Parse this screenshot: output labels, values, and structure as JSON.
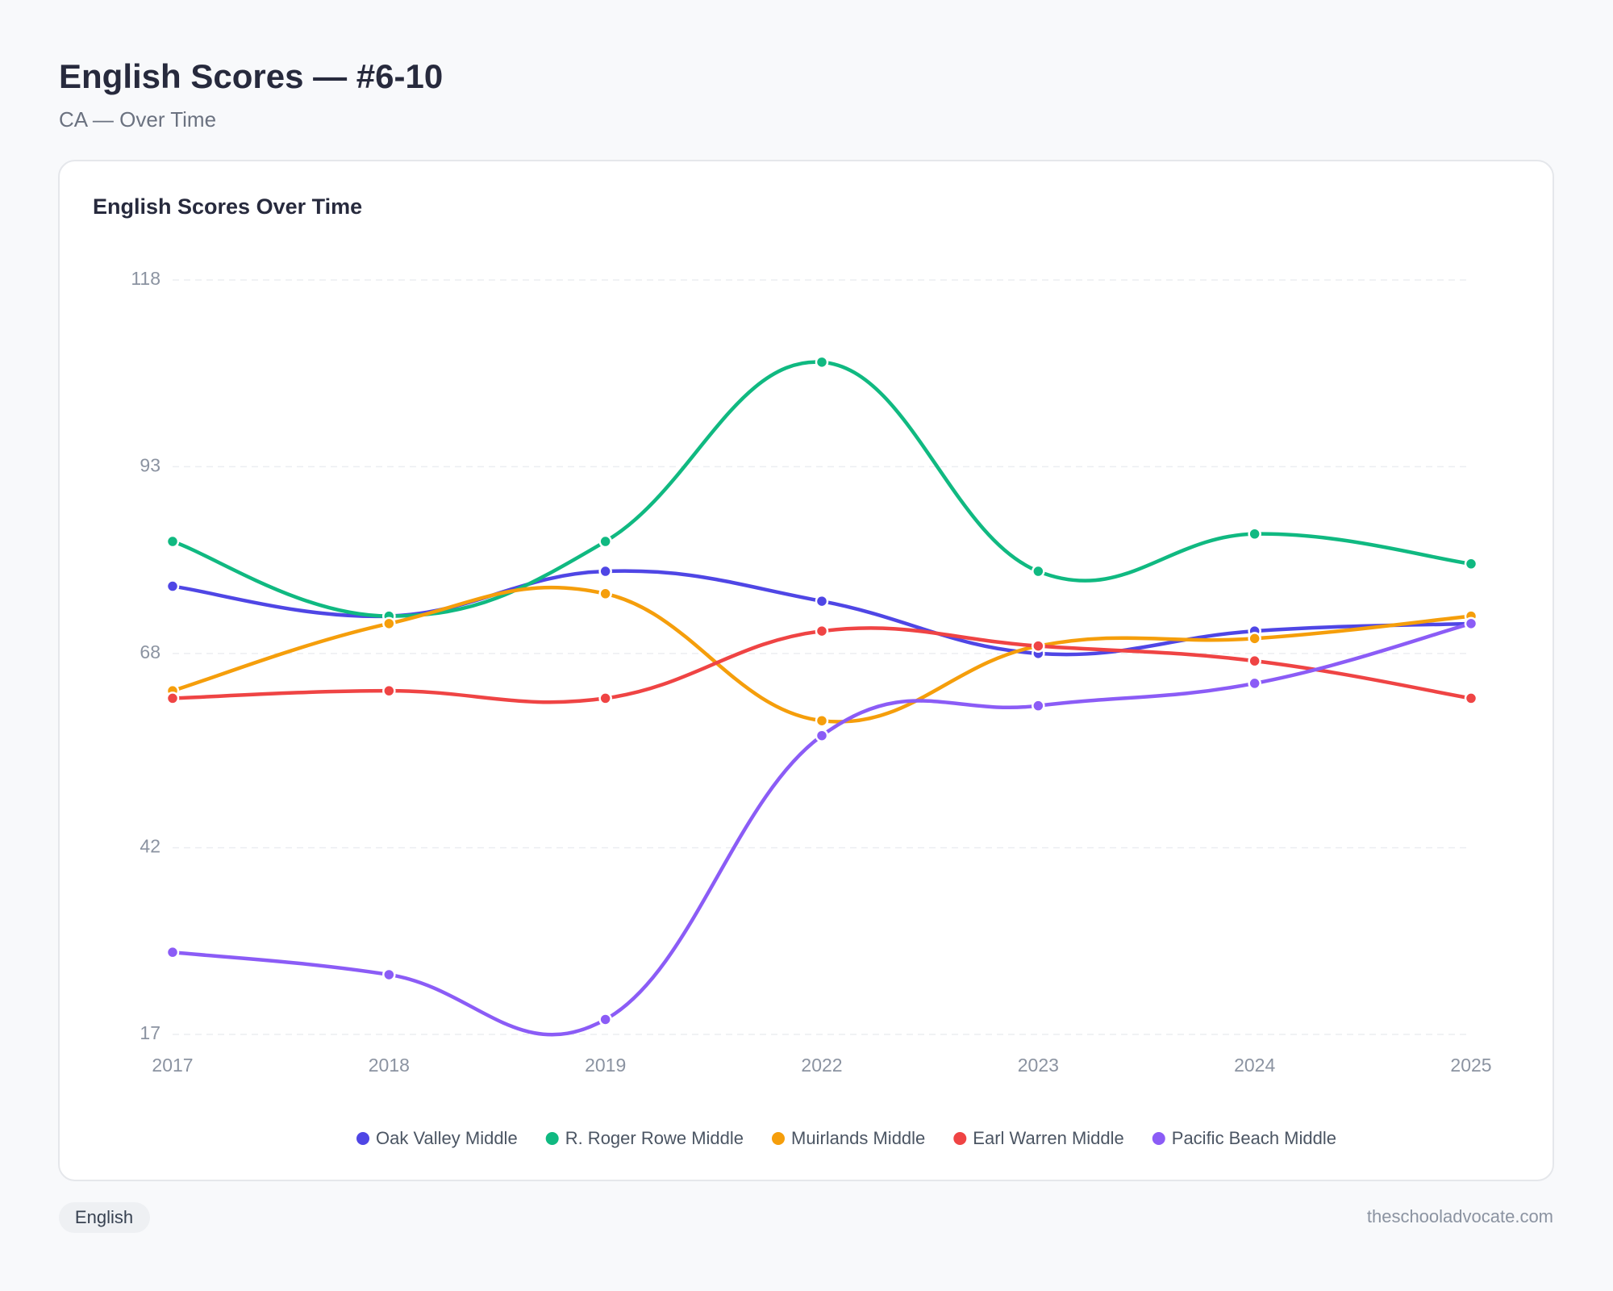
{
  "header": {
    "title": "English Scores — #6-10",
    "subtitle": "CA — Over Time"
  },
  "chart_data": {
    "type": "line",
    "title": "English Scores Over Time",
    "categories": [
      "2017",
      "2018",
      "2019",
      "2022",
      "2023",
      "2024",
      "2025"
    ],
    "series": [
      {
        "name": "Oak Valley Middle",
        "color": "#4f46e5",
        "values": [
          77,
          73,
          79,
          75,
          68,
          71,
          72
        ]
      },
      {
        "name": "R. Roger Rowe Middle",
        "color": "#10b981",
        "values": [
          83,
          73,
          83,
          107,
          79,
          84,
          80
        ]
      },
      {
        "name": "Muirlands Middle",
        "color": "#f59e0b",
        "values": [
          63,
          72,
          76,
          59,
          69,
          70,
          73
        ]
      },
      {
        "name": "Earl Warren Middle",
        "color": "#ef4444",
        "values": [
          62,
          63,
          62,
          71,
          69,
          67,
          62
        ]
      },
      {
        "name": "Pacific Beach Middle",
        "color": "#8b5cf6",
        "values": [
          28,
          25,
          19,
          57,
          61,
          64,
          72
        ]
      }
    ],
    "ylim": [
      17,
      118
    ],
    "yticks": [
      17,
      42,
      68,
      93,
      118
    ],
    "grid": true
  },
  "footer": {
    "tag": "English",
    "site": "theschooladvocate.com"
  }
}
